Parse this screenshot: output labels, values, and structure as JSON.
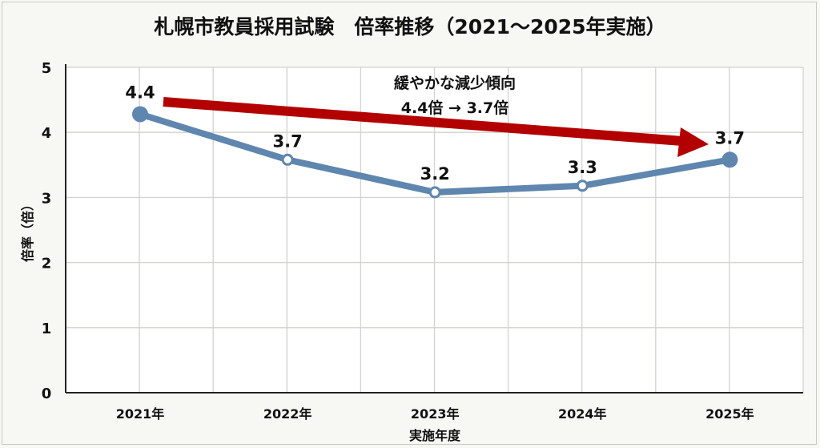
{
  "chart_data": {
    "type": "line",
    "title": "札幌市教員採用試験　倍率推移（2021〜2025年実施）",
    "xlabel": "実施年度",
    "ylabel": "倍率（倍）",
    "categories": [
      "2021年",
      "2022年",
      "2023年",
      "2024年",
      "2025年"
    ],
    "values": [
      4.4,
      3.7,
      3.2,
      3.3,
      3.7
    ],
    "data_labels": [
      "4.4",
      "3.7",
      "3.2",
      "3.3",
      "3.7"
    ],
    "ylim": [
      0,
      5
    ],
    "yticks": [
      "0",
      "1",
      "2",
      "3",
      "4",
      "5"
    ],
    "grid": true,
    "line_color": "#5f86ae",
    "annotation": {
      "line1": "緩やかな減少傾向",
      "line2": "4.4倍 → 3.7倍",
      "arrow_color": "#b30000"
    }
  }
}
